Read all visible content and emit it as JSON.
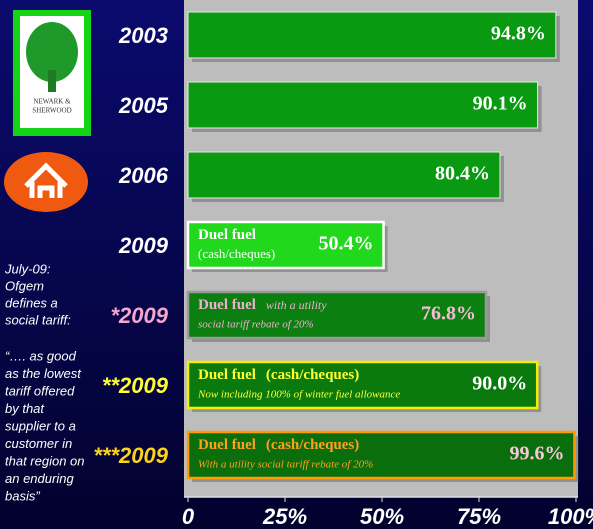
{
  "chart_data": {
    "type": "bar",
    "orientation": "horizontal",
    "categories": [
      "2003",
      "2005",
      "2006",
      "2009",
      "*2009",
      "**2009",
      "***2009"
    ],
    "values": [
      94.8,
      90.1,
      80.4,
      50.4,
      76.8,
      90.0,
      99.6
    ],
    "value_labels": [
      "94.8%",
      "90.1%",
      "80.4%",
      "50.4%",
      "76.8%",
      "90.0%",
      "99.6%"
    ],
    "colors": [
      "#0a9a12",
      "#0a9a12",
      "#0a9a12",
      "#22d81c",
      "#0b7f10",
      "#0a7a0e",
      "#0a6e0c"
    ],
    "border_colors": [
      "#e8e8e8",
      "#e8e8e8",
      "#e8e8e8",
      "#ffffff",
      "#9a9a9a",
      "#f0f000",
      "#ff9a00"
    ],
    "category_colors": [
      "#ffffff",
      "#ffffff",
      "#ffffff",
      "#ffffff",
      "#f4a6cc",
      "#ffff33",
      "#ffd21a"
    ],
    "value_label_colors": [
      "#ffffff",
      "#ffffff",
      "#ffffff",
      "#ffffff",
      "#f4bcd6",
      "#ffffff",
      "#f8c8d8"
    ],
    "bar_notes": [
      null,
      null,
      null,
      {
        "title": "Duel fuel",
        "detail": "(cash/cheques)",
        "color": "#ffffff"
      },
      {
        "title": "Duel fuel",
        "extra": "with a utility",
        "extra_style": "italic",
        "detail": "social tariff rebate of 20%",
        "color": "#f0b0d0"
      },
      {
        "title": "Duel fuel",
        "extra": "(cash/cheques)",
        "extra_style": "bold",
        "detail": "Now including 100% of winter fuel allowance",
        "color": "#ffff33"
      },
      {
        "title": "Duel fuel",
        "extra": "(cash/cheques)",
        "extra_style": "bold",
        "detail": "With a utility social tariff rebate of 20%",
        "color": "#ffa020"
      }
    ],
    "xlim": [
      0,
      100
    ],
    "xticks": [
      0,
      {
        "value": 25,
        "label": "25%"
      },
      {
        "value": 50,
        "label": "50%"
      },
      {
        "value": 75,
        "label": "75%"
      },
      {
        "value": 100,
        "label": "100%"
      }
    ],
    "side_note": [
      "July-09:",
      "Ofgem",
      "defines a",
      "social tariff:"
    ],
    "quote": [
      "“…. as good",
      "as the lowest",
      "tariff offered",
      "by that",
      "supplier to a",
      "customer in",
      "that region on",
      "an enduring",
      "basis”"
    ],
    "logo_text": [
      "NEWARK &",
      "SHERWOOD"
    ]
  }
}
